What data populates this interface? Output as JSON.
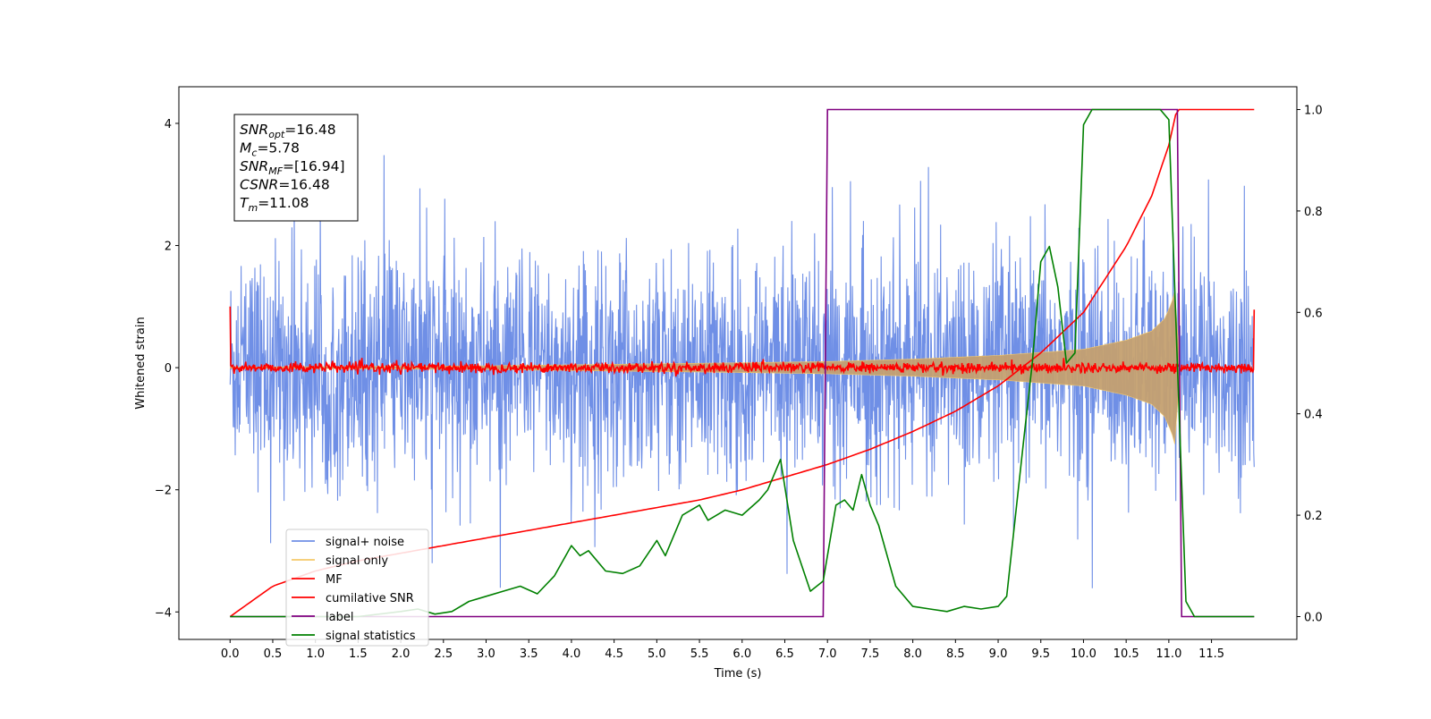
{
  "chart_data": {
    "type": "line",
    "xlabel": "Time (s)",
    "ylabel": "Whitened strain",
    "xlim": [
      -0.6,
      12.5
    ],
    "ylim": [
      -4.45,
      4.6
    ],
    "y2lim": [
      -0.045,
      1.045
    ],
    "x_ticks": [
      "0.0",
      "0.5",
      "1.0",
      "1.5",
      "2.0",
      "2.5",
      "3.0",
      "3.5",
      "4.0",
      "4.5",
      "5.0",
      "5.5",
      "6.0",
      "6.5",
      "7.0",
      "7.5",
      "8.0",
      "8.5",
      "9.0",
      "9.5",
      "10.0",
      "10.5",
      "11.0",
      "11.5"
    ],
    "y_ticks": [
      "−4",
      "−2",
      "0",
      "2",
      "4"
    ],
    "y2_ticks": [
      "0.0",
      "0.2",
      "0.4",
      "0.6",
      "0.8",
      "1.0"
    ],
    "annotation": {
      "lines": [
        {
          "sym": "SNR",
          "sub": "opt",
          "val": "=16.48"
        },
        {
          "sym": "M",
          "sub": "c",
          "val": "=5.78"
        },
        {
          "sym": "SNR",
          "sub": "MF",
          "val": "=[16.94]"
        },
        {
          "sym": "CSNR",
          "sub": "",
          "val": "=16.48"
        },
        {
          "sym": "T",
          "sub": "m",
          "val": "=11.08"
        }
      ]
    },
    "legend": {
      "placement": "lower-left",
      "entries": [
        {
          "label": "signal+ noise",
          "color": "#6f8fe6"
        },
        {
          "label": "signal only",
          "color": "#f5c96a"
        },
        {
          "label": "MF",
          "color": "#ff0000"
        },
        {
          "label": "cumilative SNR",
          "color": "#ff0000"
        },
        {
          "label": "label",
          "color": "#800080"
        },
        {
          "label": "signal statistics",
          "color": "#008000"
        }
      ]
    },
    "series": [
      {
        "name": "signal+ noise",
        "axis": "left",
        "noise_sigma": 0.9,
        "t_start": 0.0,
        "t_end": 12.0
      },
      {
        "name": "signal only",
        "axis": "left",
        "envelope": [
          [
            0.0,
            0.01
          ],
          [
            3.0,
            0.03
          ],
          [
            6.0,
            0.08
          ],
          [
            7.0,
            0.1
          ],
          [
            8.0,
            0.14
          ],
          [
            9.0,
            0.2
          ],
          [
            9.5,
            0.25
          ],
          [
            10.0,
            0.3
          ],
          [
            10.5,
            0.45
          ],
          [
            10.8,
            0.6
          ],
          [
            10.95,
            0.8
          ],
          [
            11.03,
            1.05
          ],
          [
            11.08,
            1.3
          ],
          [
            11.12,
            0.0
          ],
          [
            12.0,
            0.0
          ]
        ]
      },
      {
        "name": "MF",
        "axis": "left",
        "baseline": 0.0,
        "noise_amp": 0.07,
        "edge_start": 1.0,
        "edge_end": 0.95
      },
      {
        "name": "cumilative SNR",
        "axis": "right",
        "t": [
          0.0,
          0.5,
          1.0,
          1.5,
          2.0,
          2.5,
          3.0,
          3.5,
          4.0,
          4.5,
          5.0,
          5.5,
          6.0,
          6.5,
          7.0,
          7.5,
          8.0,
          8.5,
          9.0,
          9.5,
          10.0,
          10.5,
          10.8,
          11.0,
          11.08,
          11.12,
          12.0
        ],
        "v": [
          0.0,
          0.06,
          0.09,
          0.11,
          0.125,
          0.14,
          0.155,
          0.17,
          0.185,
          0.2,
          0.215,
          0.23,
          0.25,
          0.275,
          0.3,
          0.33,
          0.365,
          0.405,
          0.455,
          0.52,
          0.6,
          0.73,
          0.83,
          0.93,
          0.99,
          1.0,
          1.0
        ]
      },
      {
        "name": "label",
        "axis": "right",
        "t": [
          0.0,
          6.95,
          7.0,
          11.1,
          11.15,
          12.0
        ],
        "v": [
          0.0,
          0.0,
          1.0,
          1.0,
          0.0,
          0.0
        ]
      },
      {
        "name": "signal statistics",
        "axis": "right",
        "t": [
          0.0,
          0.8,
          1.5,
          2.0,
          2.2,
          2.4,
          2.6,
          2.8,
          3.0,
          3.2,
          3.4,
          3.6,
          3.8,
          4.0,
          4.1,
          4.2,
          4.4,
          4.6,
          4.8,
          5.0,
          5.1,
          5.3,
          5.5,
          5.6,
          5.8,
          6.0,
          6.2,
          6.3,
          6.45,
          6.6,
          6.8,
          6.95,
          7.1,
          7.2,
          7.3,
          7.4,
          7.5,
          7.6,
          7.8,
          8.0,
          8.2,
          8.4,
          8.6,
          8.8,
          9.0,
          9.1,
          9.3,
          9.4,
          9.5,
          9.6,
          9.7,
          9.8,
          9.9,
          10.0,
          10.1,
          10.3,
          10.6,
          10.9,
          11.0,
          11.1,
          11.2,
          11.3,
          12.0
        ],
        "v": [
          0.0,
          0.0,
          0.0,
          0.01,
          0.015,
          0.005,
          0.01,
          0.03,
          0.04,
          0.05,
          0.06,
          0.045,
          0.08,
          0.14,
          0.12,
          0.13,
          0.09,
          0.085,
          0.1,
          0.15,
          0.12,
          0.2,
          0.22,
          0.19,
          0.21,
          0.2,
          0.23,
          0.25,
          0.31,
          0.15,
          0.05,
          0.07,
          0.22,
          0.23,
          0.21,
          0.28,
          0.22,
          0.18,
          0.06,
          0.02,
          0.015,
          0.01,
          0.02,
          0.015,
          0.02,
          0.04,
          0.35,
          0.5,
          0.7,
          0.73,
          0.65,
          0.5,
          0.52,
          0.97,
          1.0,
          1.0,
          1.0,
          1.0,
          0.98,
          0.5,
          0.03,
          0.0,
          0.0
        ]
      }
    ]
  }
}
